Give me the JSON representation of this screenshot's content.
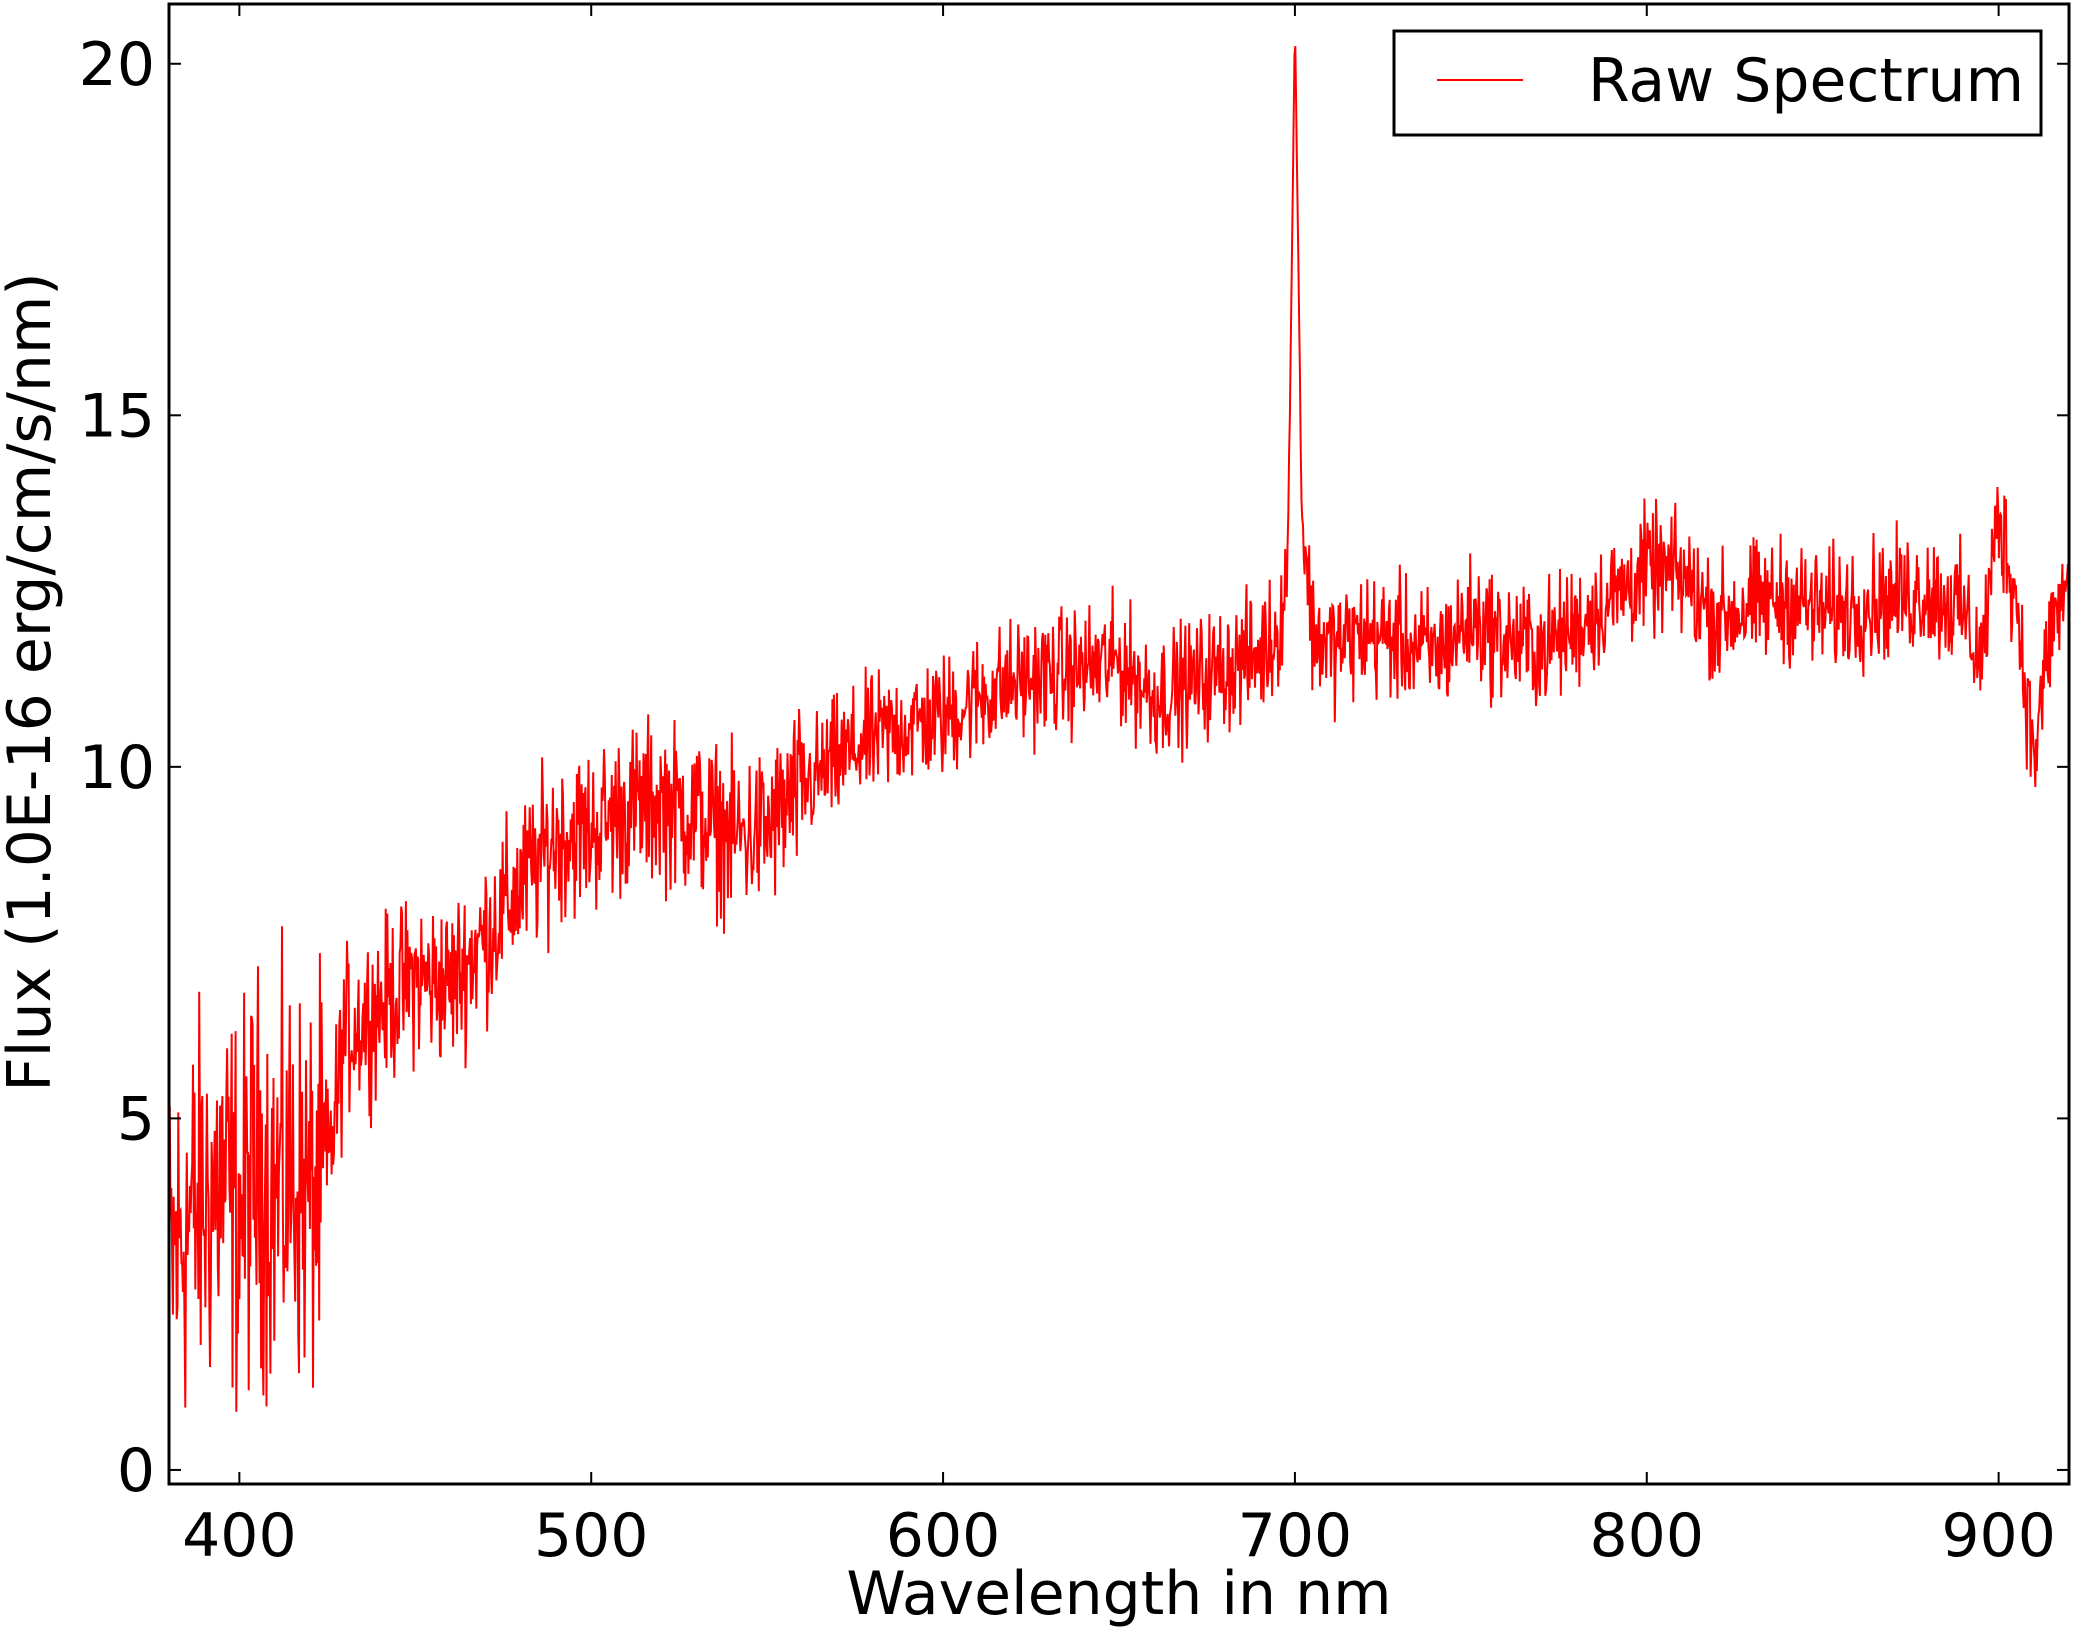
{
  "chart_data": {
    "type": "line",
    "xlabel": "Wavelength in nm",
    "ylabel": "Flux (1.0E-16 erg/cm/s/nm)",
    "xlim": [
      380,
      920
    ],
    "ylim": [
      -0.2,
      20.85
    ],
    "xticks": [
      400,
      500,
      600,
      700,
      800,
      900
    ],
    "yticks": [
      0,
      5,
      10,
      15,
      20
    ],
    "grid": false,
    "legend_position": "top-right",
    "series": [
      {
        "name": "Raw Spectrum",
        "color": "#ff0000",
        "x": [
          380,
          385,
          390,
          395,
          400,
          405,
          410,
          415,
          420,
          425,
          430,
          440,
          450,
          460,
          470,
          480,
          490,
          500,
          510,
          520,
          530,
          540,
          550,
          560,
          570,
          580,
          590,
          600,
          610,
          620,
          630,
          640,
          650,
          660,
          670,
          680,
          690,
          695,
          698,
          700,
          702,
          705,
          710,
          720,
          730,
          740,
          750,
          760,
          770,
          780,
          790,
          800,
          810,
          820,
          830,
          840,
          850,
          860,
          870,
          880,
          890,
          895,
          900,
          905,
          910,
          915,
          920
        ],
        "y": [
          2.8,
          3.5,
          3.8,
          4.1,
          3.6,
          4.3,
          3.9,
          4.2,
          3.8,
          4.2,
          6.2,
          6.6,
          7.0,
          6.9,
          7.6,
          8.3,
          9.0,
          9.1,
          9.4,
          9.5,
          9.3,
          9.0,
          9.1,
          9.7,
          10.1,
          10.4,
          10.6,
          10.7,
          11.0,
          11.2,
          11.3,
          11.4,
          11.5,
          11.0,
          11.2,
          11.4,
          11.6,
          11.9,
          12.8,
          20.6,
          13.6,
          11.9,
          11.7,
          11.9,
          11.8,
          11.6,
          12.1,
          11.8,
          11.7,
          12.0,
          12.4,
          12.8,
          12.7,
          12.1,
          12.3,
          12.4,
          12.2,
          12.3,
          12.4,
          12.5,
          12.2,
          11.5,
          13.6,
          12.4,
          10.1,
          12.0,
          12.6
        ]
      }
    ]
  }
}
